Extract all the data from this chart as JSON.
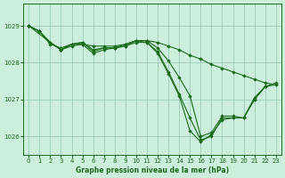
{
  "title": "Graphe pression niveau de la mer (hPa)",
  "bg_color": "#cceedd",
  "grid_color": "#99ccbb",
  "line_color": "#1a6b1a",
  "marker_color": "#1a6b1a",
  "xlim": [
    -0.5,
    23.5
  ],
  "ylim": [
    1025.5,
    1029.6
  ],
  "yticks": [
    1026,
    1027,
    1028,
    1029
  ],
  "xticks": [
    0,
    1,
    2,
    3,
    4,
    5,
    6,
    7,
    8,
    9,
    10,
    11,
    12,
    13,
    14,
    15,
    16,
    17,
    18,
    19,
    20,
    21,
    22,
    23
  ],
  "series": [
    {
      "x": [
        0,
        1,
        2,
        3,
        4,
        5,
        6,
        7,
        8,
        9,
        10,
        11,
        12,
        13,
        14,
        15,
        16,
        17,
        18,
        19,
        20,
        21,
        22,
        23
      ],
      "y": [
        1029.0,
        1028.85,
        1028.5,
        1028.4,
        1028.5,
        1028.5,
        1028.45,
        1028.45,
        1028.45,
        1028.5,
        1028.6,
        1028.6,
        1028.55,
        1028.45,
        1028.35,
        1028.2,
        1028.1,
        1027.95,
        1027.85,
        1027.75,
        1027.65,
        1027.55,
        1027.45,
        1027.4
      ]
    },
    {
      "x": [
        0,
        1,
        2,
        3,
        4,
        5,
        6,
        7,
        8,
        9,
        10,
        11,
        12,
        13,
        14,
        15,
        16,
        17,
        18,
        19,
        20,
        21,
        22,
        23
      ],
      "y": [
        1029.0,
        1028.85,
        1028.55,
        1028.35,
        1028.5,
        1028.55,
        1028.35,
        1028.4,
        1028.4,
        1028.45,
        1028.6,
        1028.6,
        1028.4,
        1028.05,
        1027.6,
        1027.1,
        1026.0,
        1026.1,
        1026.55,
        1026.55,
        1026.5,
        1027.05,
        1027.35,
        1027.4
      ]
    },
    {
      "x": [
        0,
        1,
        2,
        3,
        4,
        5,
        6,
        7,
        8,
        9,
        10,
        11,
        12,
        13,
        14,
        15,
        16,
        17,
        18,
        19,
        20,
        21,
        22
      ],
      "y": [
        1029.0,
        1028.85,
        1028.55,
        1028.35,
        1028.5,
        1028.55,
        1028.3,
        1028.4,
        1028.4,
        1028.5,
        1028.6,
        1028.55,
        1028.3,
        1027.75,
        1027.15,
        1026.5,
        1025.9,
        1026.0,
        1026.5,
        1026.5,
        1026.5,
        1027.0,
        1027.35
      ]
    },
    {
      "x": [
        0,
        2,
        3,
        4,
        5,
        6,
        7,
        8,
        9,
        10,
        11,
        12,
        13,
        14,
        15,
        16,
        17,
        18,
        19,
        20,
        21,
        22,
        23
      ],
      "y": [
        1029.0,
        1028.55,
        1028.35,
        1028.45,
        1028.5,
        1028.25,
        1028.35,
        1028.4,
        1028.45,
        1028.55,
        1028.55,
        1028.25,
        1027.7,
        1027.1,
        1026.15,
        1025.85,
        1026.05,
        1026.45,
        1026.5,
        1026.5,
        1027.0,
        1027.35,
        1027.45
      ]
    }
  ]
}
